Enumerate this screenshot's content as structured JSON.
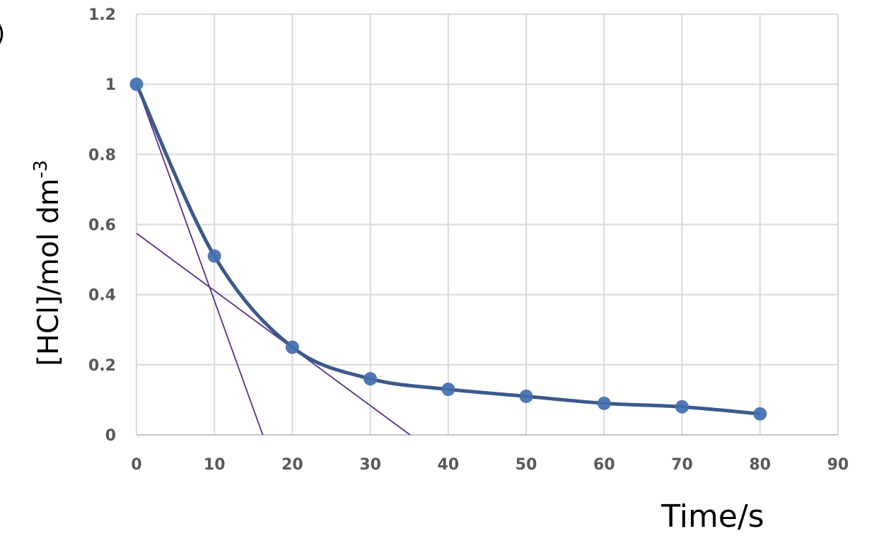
{
  "corner_fragment": ")",
  "chart_data": {
    "type": "scatter",
    "title": "",
    "xlabel": "Time/s",
    "ylabel": "[HCl]/mol dm-3",
    "ylabel_main": "[HCl]/mol dm",
    "ylabel_superscript": "-3",
    "xlim": [
      0,
      90
    ],
    "ylim": [
      0,
      1.2
    ],
    "grid": true,
    "legend": "none",
    "x_ticks": [
      "0",
      "10",
      "20",
      "30",
      "40",
      "50",
      "60",
      "70",
      "80",
      "90"
    ],
    "y_ticks": [
      "0",
      "0.2",
      "0.4",
      "0.6",
      "0.8",
      "1",
      "1.2"
    ],
    "series": [
      {
        "name": "[HCl]",
        "style": "markers with smoothed line",
        "x": [
          0,
          10,
          20,
          30,
          40,
          50,
          60,
          70,
          80
        ],
        "y": [
          1.0,
          0.51,
          0.25,
          0.16,
          0.13,
          0.11,
          0.09,
          0.08,
          0.06
        ]
      }
    ],
    "annotations": [
      {
        "type": "tangent-line",
        "label": "tangent at t=0",
        "from": [
          0,
          1.0
        ],
        "to": [
          16.2,
          0
        ]
      },
      {
        "type": "tangent-line",
        "label": "tangent at t=20",
        "from": [
          0,
          0.575
        ],
        "to": [
          35.1,
          0
        ]
      }
    ],
    "colors": {
      "marker": "#4f78b8",
      "curve": "#3c5a8a",
      "tangent": "#5b2d8e",
      "grid": "#d9d9d9",
      "tick_label": "#595959"
    }
  }
}
